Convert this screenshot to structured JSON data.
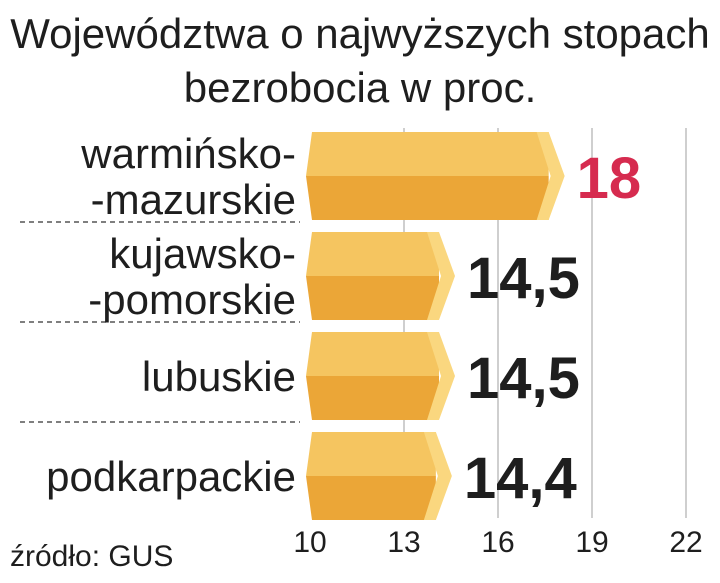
{
  "chart_data": {
    "type": "bar",
    "orientation": "horizontal",
    "title": "Województwa o najwyższych stopach bezrobocia w proc.",
    "title_lines": [
      "Województwa o najwyższych stopach",
      "bezrobocia w proc."
    ],
    "categories": [
      [
        "warmińsko-",
        "-mazurskie"
      ],
      [
        "kujawsko-",
        "-pomorskie"
      ],
      [
        "lubuskie"
      ],
      [
        "podkarpackie"
      ]
    ],
    "values": [
      18,
      14.5,
      14.5,
      14.4
    ],
    "value_labels": [
      "18",
      "14,5",
      "14,5",
      "14,4"
    ],
    "xlim": [
      10,
      22
    ],
    "xticks": [
      10,
      13,
      16,
      19,
      22
    ],
    "xtick_labels": [
      "10",
      "13",
      "16",
      "19",
      "22"
    ],
    "grid": true,
    "source": "źródło: GUS",
    "colors": {
      "bar_top": "#f5c560",
      "bar_bottom": "#eba637",
      "bar_cap": "#fad77f",
      "highlight_label": "#d62b4f",
      "label": "#1e1e1e",
      "grid": "#cfcfcf"
    }
  }
}
